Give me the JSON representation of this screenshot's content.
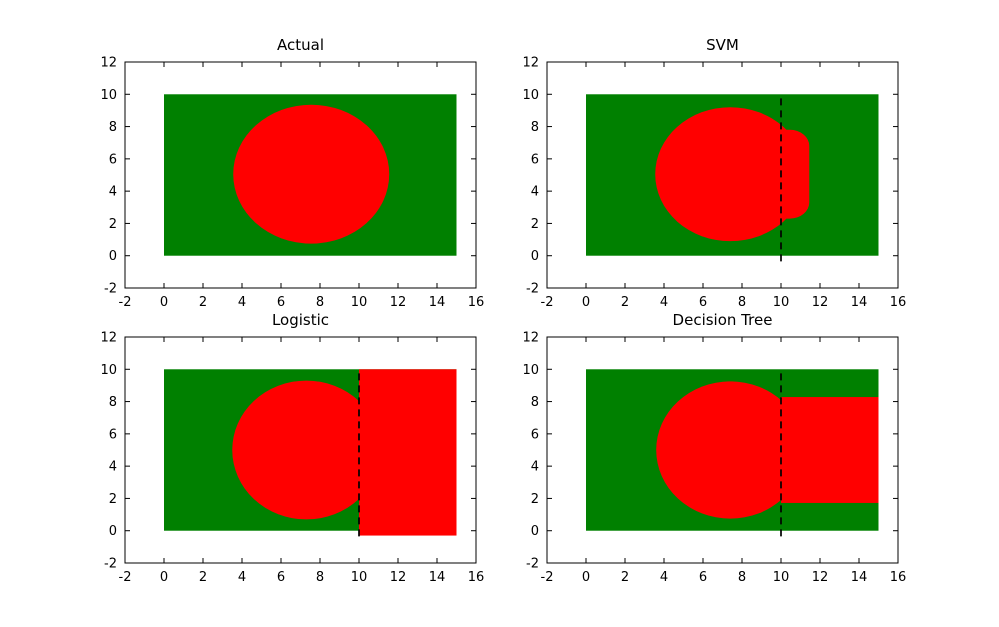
{
  "figure": {
    "background": "#ffffff",
    "axes_color": "#000000",
    "class_colors": {
      "inside_region": "#008000",
      "outside_region": "#ff0000"
    },
    "boundary_line_color": "#000000",
    "boundary_line_style": "dashed"
  },
  "chart_data": [
    {
      "type": "area",
      "title": "Actual",
      "xlim": [
        -2,
        16
      ],
      "ylim": [
        -2,
        12
      ],
      "xticks": [
        -2,
        0,
        2,
        4,
        6,
        8,
        10,
        12,
        14,
        16
      ],
      "yticks": [
        -2,
        0,
        2,
        4,
        6,
        8,
        10,
        12
      ],
      "grid": false,
      "legend": null,
      "shapes": [
        {
          "kind": "rect",
          "label": "green-region",
          "x": 0,
          "y": 0,
          "w": 15,
          "h": 10,
          "color": "#008000"
        },
        {
          "kind": "ellipse",
          "label": "red-region",
          "cx": 7.55,
          "cy": 5.05,
          "rx": 4.0,
          "ry": 4.3,
          "color": "#ff0000"
        }
      ],
      "boundary": null
    },
    {
      "type": "area",
      "title": "SVM",
      "xlim": [
        -2,
        16
      ],
      "ylim": [
        -2,
        12
      ],
      "xticks": [
        -2,
        0,
        2,
        4,
        6,
        8,
        10,
        12,
        14,
        16
      ],
      "yticks": [
        -2,
        0,
        2,
        4,
        6,
        8,
        10,
        12
      ],
      "grid": false,
      "legend": null,
      "shapes": [
        {
          "kind": "rect",
          "label": "green-region",
          "x": 0,
          "y": 0,
          "w": 15,
          "h": 10,
          "color": "#008000"
        },
        {
          "kind": "ellipse",
          "label": "red-region",
          "cx": 7.4,
          "cy": 5.05,
          "rx": 3.85,
          "ry": 4.15,
          "color": "#ff0000"
        },
        {
          "kind": "rect",
          "label": "red-bulge",
          "x": 8.6,
          "y": 2.3,
          "w": 2.85,
          "h": 5.5,
          "r": 1.0,
          "color": "#ff0000"
        }
      ],
      "boundary": {
        "x": 10,
        "y1": -0.35,
        "y2": 10
      }
    },
    {
      "type": "area",
      "title": "Logistic",
      "xlim": [
        -2,
        16
      ],
      "ylim": [
        -2,
        12
      ],
      "xticks": [
        -2,
        0,
        2,
        4,
        6,
        8,
        10,
        12,
        14,
        16
      ],
      "yticks": [
        -2,
        0,
        2,
        4,
        6,
        8,
        10,
        12
      ],
      "grid": false,
      "legend": null,
      "shapes": [
        {
          "kind": "rect",
          "label": "green-region",
          "x": 0,
          "y": 0,
          "w": 15,
          "h": 10,
          "color": "#008000"
        },
        {
          "kind": "ellipse",
          "label": "red-region",
          "cx": 7.3,
          "cy": 5.0,
          "rx": 3.8,
          "ry": 4.3,
          "color": "#ff0000"
        },
        {
          "kind": "rect",
          "label": "red-right-block",
          "x": 10,
          "y": -0.3,
          "w": 5,
          "h": 10.3,
          "color": "#ff0000"
        }
      ],
      "boundary": {
        "x": 10,
        "y1": -0.35,
        "y2": 10
      }
    },
    {
      "type": "area",
      "title": "Decision Tree",
      "xlim": [
        -2,
        16
      ],
      "ylim": [
        -2,
        12
      ],
      "xticks": [
        -2,
        0,
        2,
        4,
        6,
        8,
        10,
        12,
        14,
        16
      ],
      "yticks": [
        -2,
        0,
        2,
        4,
        6,
        8,
        10,
        12
      ],
      "grid": false,
      "legend": null,
      "shapes": [
        {
          "kind": "rect",
          "label": "green-region",
          "x": 0,
          "y": 0,
          "w": 15,
          "h": 10,
          "color": "#008000"
        },
        {
          "kind": "ellipse",
          "label": "red-region",
          "cx": 7.4,
          "cy": 5.0,
          "rx": 3.8,
          "ry": 4.25,
          "color": "#ff0000"
        },
        {
          "kind": "rect",
          "label": "red-right-band",
          "x": 10,
          "y": 1.72,
          "w": 5,
          "h": 6.56,
          "color": "#ff0000"
        }
      ],
      "boundary": {
        "x": 10,
        "y1": -0.35,
        "y2": 10
      }
    }
  ]
}
